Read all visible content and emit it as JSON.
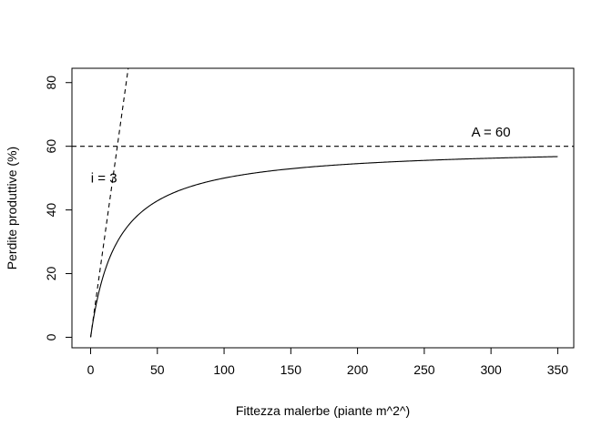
{
  "chart_data": {
    "type": "line",
    "title": "",
    "xlabel": "Fittezza malerbe (piante m^2^)",
    "ylabel": "Perdite produttive (%)",
    "xlim": [
      -14,
      362
    ],
    "ylim": [
      -3.3,
      84.5
    ],
    "x_ticks": [
      0,
      50,
      100,
      150,
      200,
      250,
      300,
      350
    ],
    "y_ticks": [
      0,
      20,
      40,
      60,
      80
    ],
    "grid": false,
    "legend": "none",
    "series": [
      {
        "model": "rectangular hyperbola",
        "i": 3,
        "A": 60,
        "x_range": [
          0,
          350
        ],
        "style": "solid",
        "points": [
          {
            "x": 0,
            "y": 0
          },
          {
            "x": 10,
            "y": 20.0
          },
          {
            "x": 25,
            "y": 33.3
          },
          {
            "x": 50,
            "y": 42.9
          },
          {
            "x": 100,
            "y": 50.0
          },
          {
            "x": 150,
            "y": 52.9
          },
          {
            "x": 200,
            "y": 54.5
          },
          {
            "x": 250,
            "y": 55.6
          },
          {
            "x": 300,
            "y": 56.3
          },
          {
            "x": 350,
            "y": 56.8
          }
        ]
      },
      {
        "model": "initial slope line",
        "slope": 3,
        "intercept": 0,
        "style": "dashed"
      },
      {
        "model": "asymptote line",
        "y": 60,
        "style": "dashed"
      }
    ],
    "annotations": [
      {
        "text": "i = 3",
        "x": 10,
        "y": 50
      },
      {
        "text": "A = 60",
        "x": 300,
        "y": 64.5
      }
    ],
    "colors": {
      "line": "#000000",
      "background": "#ffffff"
    }
  }
}
